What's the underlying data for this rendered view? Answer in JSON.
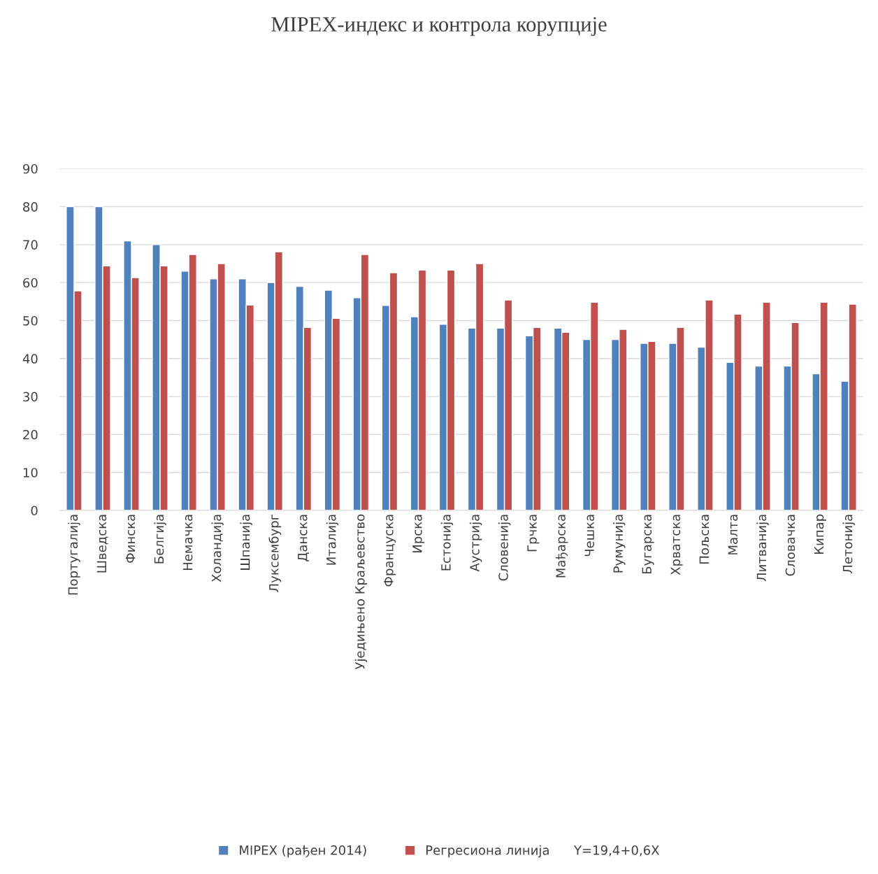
{
  "chart_data": {
    "type": "bar",
    "title": "MIPEX-индекс и контрола корупције",
    "categories": [
      "Португалија",
      "Шведска",
      "Финска",
      "Белгија",
      "Немачка",
      "Холандија",
      "Шпанија",
      "Луксембург",
      "Данска",
      "Италија",
      "Уједињено Краљевство",
      "Француска",
      "Ирска",
      "Естонија",
      "Аустрија",
      "Словенија",
      "Грчка",
      "Мађарска",
      "Чешка",
      "Румунија",
      "Бугарска",
      "Хрватска",
      "Пољска",
      "Малта",
      "Литванија",
      "Словачка",
      "Кипар",
      "Летонија"
    ],
    "series": [
      {
        "name": "MIPEX (рађен 2014)",
        "color": "#4f81bd",
        "values": [
          80,
          80,
          71,
          70,
          63,
          61,
          61,
          60,
          59,
          58,
          56,
          54,
          51,
          49,
          48,
          48,
          46,
          48,
          45,
          45,
          44,
          44,
          43,
          39,
          38,
          38,
          36,
          34
        ]
      },
      {
        "name": "Регресиона линија      Y=19,4+0,6X",
        "color": "#c0504d",
        "values": [
          57.8,
          64.4,
          61.3,
          64.4,
          67.4,
          65.0,
          54.1,
          68.1,
          48.2,
          50.6,
          67.4,
          62.6,
          63.3,
          63.3,
          65.0,
          55.4,
          48.2,
          46.9,
          54.8,
          47.7,
          44.5,
          48.2,
          55.4,
          51.7,
          54.8,
          49.5,
          54.8,
          54.3
        ]
      }
    ],
    "ylim": [
      0,
      90
    ],
    "yticks": [
      0,
      10,
      20,
      30,
      40,
      50,
      60,
      70,
      80,
      90
    ],
    "grid": "y",
    "legend": "bottom"
  }
}
